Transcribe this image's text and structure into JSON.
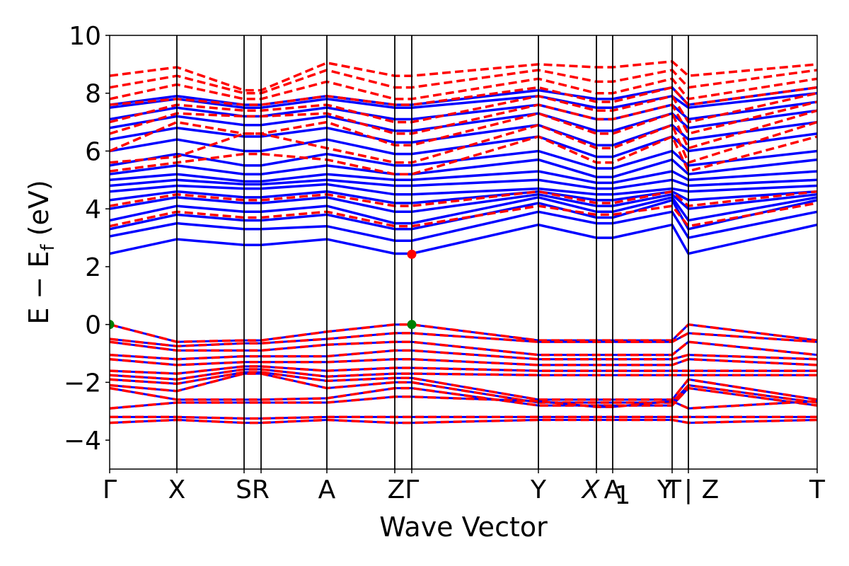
{
  "chart_data": {
    "type": "line",
    "title": "",
    "xlabel": "Wave Vector",
    "ylabel": "E − E",
    "ylabel_subscript": "f",
    "ylabel_unit": "(eV)",
    "ylim": [
      -5,
      10
    ],
    "yticks": [
      -4,
      -2,
      0,
      2,
      4,
      6,
      8,
      10
    ],
    "yticklabels": [
      "−4",
      "−2",
      "0",
      "2",
      "4",
      "6",
      "8",
      "10"
    ],
    "x_range": [
      0,
      1
    ],
    "grid": false,
    "legend": "none",
    "kpoints": [
      {
        "label": "Γ",
        "x": 0.0
      },
      {
        "label": "X",
        "x": 0.095
      },
      {
        "label": "S",
        "x": 0.19
      },
      {
        "label": "R",
        "x": 0.214
      },
      {
        "label": "A",
        "x": 0.307
      },
      {
        "label": "Z",
        "x": 0.403
      },
      {
        "label": "Γ",
        "x": 0.427
      },
      {
        "label": "Y",
        "x": 0.606
      },
      {
        "label": "X",
        "x": 0.688
      },
      {
        "label": "A",
        "x": 0.711
      },
      {
        "label": "1",
        "x": 0.711
      },
      {
        "label": "Y",
        "x": 0.795
      },
      {
        "label": "T",
        "x": 0.797
      },
      {
        "label": "|",
        "x": 0.818
      },
      {
        "label": "Z",
        "x": 0.847
      },
      {
        "label": "T",
        "x": 1.0
      }
    ],
    "kpoint_labels_display": [
      {
        "text": "Γ",
        "x": 0.0
      },
      {
        "text": "X",
        "x": 0.095
      },
      {
        "text": "SR",
        "x": 0.202
      },
      {
        "text": "A",
        "x": 0.307
      },
      {
        "text": "ZΓ",
        "x": 0.415
      },
      {
        "text": "Y",
        "x": 0.606
      },
      {
        "text": "X",
        "x": 0.68,
        "italic": true
      },
      {
        "text": "A",
        "x": 0.711
      },
      {
        "text": "1",
        "x": 0.711,
        "sub": true
      },
      {
        "text": "Y",
        "x": 0.785
      },
      {
        "text": "T",
        "x": 0.797
      },
      {
        "text": "|",
        "x": 0.818
      },
      {
        "text": "Z",
        "x": 0.849
      },
      {
        "text": "T",
        "x": 1.0
      }
    ],
    "vertical_lines": [
      0.0,
      0.095,
      0.19,
      0.214,
      0.307,
      0.403,
      0.427,
      0.606,
      0.688,
      0.711,
      0.795,
      0.818,
      1.0
    ],
    "series": [
      {
        "style": "solid",
        "color": "#0000ff",
        "role": "conduction (solid)",
        "bands": [
          [
            2.45,
            2.95,
            2.75,
            2.75,
            2.95,
            2.45,
            2.45,
            3.45,
            3.0,
            3.0,
            3.45,
            2.45,
            3.45
          ],
          [
            3.05,
            3.5,
            3.3,
            3.3,
            3.4,
            2.9,
            2.9,
            3.9,
            3.5,
            3.5,
            3.9,
            3.0,
            3.9
          ],
          [
            3.3,
            3.8,
            3.6,
            3.6,
            3.8,
            3.3,
            3.3,
            4.2,
            3.7,
            3.7,
            4.3,
            3.3,
            4.3
          ],
          [
            3.6,
            4.1,
            3.9,
            3.9,
            4.1,
            3.5,
            3.5,
            4.4,
            3.9,
            3.9,
            4.4,
            3.6,
            4.4
          ],
          [
            4.0,
            4.4,
            4.2,
            4.2,
            4.4,
            3.9,
            3.9,
            4.5,
            4.1,
            4.1,
            4.5,
            4.0,
            4.5
          ],
          [
            4.3,
            4.6,
            4.4,
            4.4,
            4.6,
            4.2,
            4.2,
            4.6,
            4.3,
            4.3,
            4.6,
            4.3,
            4.6
          ],
          [
            4.6,
            4.8,
            4.7,
            4.7,
            4.85,
            4.5,
            4.5,
            4.7,
            4.5,
            4.5,
            4.7,
            4.6,
            4.8
          ],
          [
            4.8,
            5.0,
            4.85,
            4.85,
            5.0,
            4.8,
            4.8,
            5.0,
            4.7,
            4.7,
            5.0,
            4.8,
            5.0
          ],
          [
            5.0,
            5.2,
            4.95,
            4.95,
            5.2,
            5.0,
            5.0,
            5.3,
            4.9,
            4.9,
            5.3,
            5.0,
            5.3
          ],
          [
            5.2,
            5.5,
            5.2,
            5.2,
            5.5,
            5.2,
            5.2,
            5.7,
            5.1,
            5.1,
            5.7,
            5.2,
            5.7
          ],
          [
            5.5,
            5.9,
            5.5,
            5.5,
            5.9,
            5.5,
            5.5,
            6.0,
            5.4,
            5.4,
            6.0,
            5.5,
            6.0
          ],
          [
            6.0,
            6.4,
            6.0,
            6.0,
            6.4,
            5.9,
            5.9,
            6.5,
            5.8,
            5.8,
            6.5,
            6.0,
            6.6
          ],
          [
            6.4,
            6.8,
            6.5,
            6.5,
            6.8,
            6.3,
            6.3,
            6.9,
            6.2,
            6.2,
            6.9,
            6.4,
            7.0
          ],
          [
            6.8,
            7.2,
            6.9,
            6.9,
            7.2,
            6.7,
            6.7,
            7.3,
            6.7,
            6.7,
            7.3,
            6.8,
            7.4
          ],
          [
            7.1,
            7.5,
            7.2,
            7.2,
            7.5,
            7.1,
            7.1,
            7.6,
            7.1,
            7.1,
            7.6,
            7.1,
            7.7
          ],
          [
            7.5,
            7.8,
            7.5,
            7.5,
            7.8,
            7.5,
            7.5,
            7.9,
            7.5,
            7.5,
            7.9,
            7.5,
            8.0
          ],
          [
            7.6,
            7.9,
            7.6,
            7.6,
            7.9,
            7.6,
            7.6,
            8.1,
            7.8,
            7.8,
            8.2,
            7.6,
            8.2
          ]
        ]
      },
      {
        "style": "dashed",
        "color": "#ff0000",
        "role": "conduction (dashed)",
        "bands": [
          [
            3.4,
            3.9,
            3.7,
            3.7,
            3.9,
            3.4,
            3.4,
            4.1,
            3.8,
            3.8,
            4.1,
            3.4,
            4.2
          ],
          [
            4.1,
            4.5,
            4.3,
            4.3,
            4.5,
            4.1,
            4.1,
            4.6,
            4.2,
            4.2,
            4.6,
            4.1,
            4.6
          ],
          [
            5.3,
            5.6,
            5.9,
            5.9,
            5.7,
            5.2,
            5.2,
            6.5,
            5.6,
            5.6,
            6.5,
            5.3,
            6.5
          ],
          [
            5.6,
            5.8,
            6.6,
            6.6,
            6.1,
            5.6,
            5.6,
            6.9,
            6.1,
            6.1,
            6.9,
            5.6,
            7.0
          ],
          [
            6.0,
            7.0,
            6.6,
            6.6,
            7.0,
            6.2,
            6.2,
            7.3,
            6.6,
            6.6,
            7.3,
            6.1,
            7.4
          ],
          [
            6.6,
            7.3,
            7.2,
            7.2,
            7.3,
            6.6,
            6.6,
            7.6,
            7.1,
            7.1,
            7.6,
            6.6,
            7.7
          ],
          [
            7.0,
            7.6,
            7.4,
            7.4,
            7.6,
            7.0,
            7.0,
            7.9,
            7.4,
            7.4,
            7.9,
            7.0,
            8.0
          ],
          [
            7.6,
            7.8,
            7.6,
            7.6,
            7.9,
            7.6,
            7.6,
            8.2,
            7.7,
            7.7,
            8.2,
            7.6,
            8.2
          ],
          [
            7.8,
            8.3,
            7.8,
            7.8,
            8.4,
            7.8,
            7.8,
            8.5,
            8.0,
            8.0,
            8.5,
            7.8,
            8.5
          ],
          [
            8.2,
            8.6,
            8.0,
            8.0,
            8.8,
            8.2,
            8.2,
            8.8,
            8.4,
            8.4,
            8.8,
            8.2,
            8.8
          ],
          [
            8.6,
            8.9,
            8.1,
            8.1,
            9.05,
            8.6,
            8.6,
            9.0,
            8.9,
            8.9,
            9.1,
            8.6,
            9.0
          ]
        ]
      },
      {
        "style": "dashed",
        "color": "#ff0000",
        "overlay": "#0000ff",
        "role": "valence (overlapping)",
        "bands": [
          [
            0.0,
            -0.6,
            -0.55,
            -0.55,
            -0.25,
            0.0,
            0.0,
            -0.55,
            -0.55,
            -0.55,
            -0.55,
            0.0,
            -0.55
          ],
          [
            -0.5,
            -0.75,
            -0.65,
            -0.65,
            -0.5,
            -0.3,
            -0.3,
            -0.6,
            -0.6,
            -0.6,
            -0.6,
            -0.3,
            -0.6
          ],
          [
            -0.6,
            -0.9,
            -0.9,
            -0.9,
            -0.7,
            -0.6,
            -0.6,
            -1.05,
            -1.05,
            -1.05,
            -1.05,
            -0.6,
            -1.05
          ],
          [
            -1.05,
            -1.2,
            -1.1,
            -1.1,
            -1.1,
            -0.9,
            -0.9,
            -1.2,
            -1.2,
            -1.2,
            -1.2,
            -1.05,
            -1.2
          ],
          [
            -1.2,
            -1.4,
            -1.3,
            -1.3,
            -1.3,
            -1.2,
            -1.2,
            -1.4,
            -1.4,
            -1.4,
            -1.4,
            -1.2,
            -1.4
          ],
          [
            -1.6,
            -1.7,
            -1.45,
            -1.45,
            -1.6,
            -1.5,
            -1.5,
            -1.6,
            -1.6,
            -1.6,
            -1.6,
            -1.6,
            -1.6
          ],
          [
            -1.75,
            -1.9,
            -1.55,
            -1.55,
            -1.8,
            -1.7,
            -1.7,
            -1.75,
            -1.75,
            -1.75,
            -1.75,
            -1.75,
            -1.75
          ],
          [
            -1.9,
            -2.05,
            -1.65,
            -1.65,
            -1.95,
            -1.85,
            -1.85,
            -2.6,
            -2.6,
            -2.6,
            -2.6,
            -1.9,
            -2.6
          ],
          [
            -2.1,
            -2.3,
            -1.7,
            -1.7,
            -2.2,
            -2.0,
            -2.0,
            -2.7,
            -2.7,
            -2.7,
            -2.7,
            -2.1,
            -2.7
          ],
          [
            -2.2,
            -2.6,
            -2.6,
            -2.6,
            -2.55,
            -2.2,
            -2.2,
            -2.8,
            -2.8,
            -2.8,
            -2.8,
            -2.2,
            -2.8
          ],
          [
            -2.9,
            -2.7,
            -2.7,
            -2.7,
            -2.7,
            -2.5,
            -2.5,
            -2.65,
            -2.85,
            -2.85,
            -2.65,
            -2.9,
            -2.65
          ],
          [
            -3.2,
            -3.2,
            -3.25,
            -3.25,
            -3.2,
            -3.2,
            -3.2,
            -3.2,
            -3.2,
            -3.2,
            -3.2,
            -3.2,
            -3.2
          ],
          [
            -3.4,
            -3.3,
            -3.4,
            -3.4,
            -3.3,
            -3.4,
            -3.4,
            -3.3,
            -3.3,
            -3.3,
            -3.3,
            -3.4,
            -3.3
          ]
        ]
      }
    ],
    "markers": [
      {
        "x": 0.0,
        "y": 0.0,
        "color": "#008000",
        "role": "VBM"
      },
      {
        "x": 0.427,
        "y": 0.0,
        "color": "#008000",
        "role": "VBM"
      },
      {
        "x": 0.427,
        "y": 2.43,
        "color": "#ff0000",
        "role": "CBM"
      }
    ]
  }
}
